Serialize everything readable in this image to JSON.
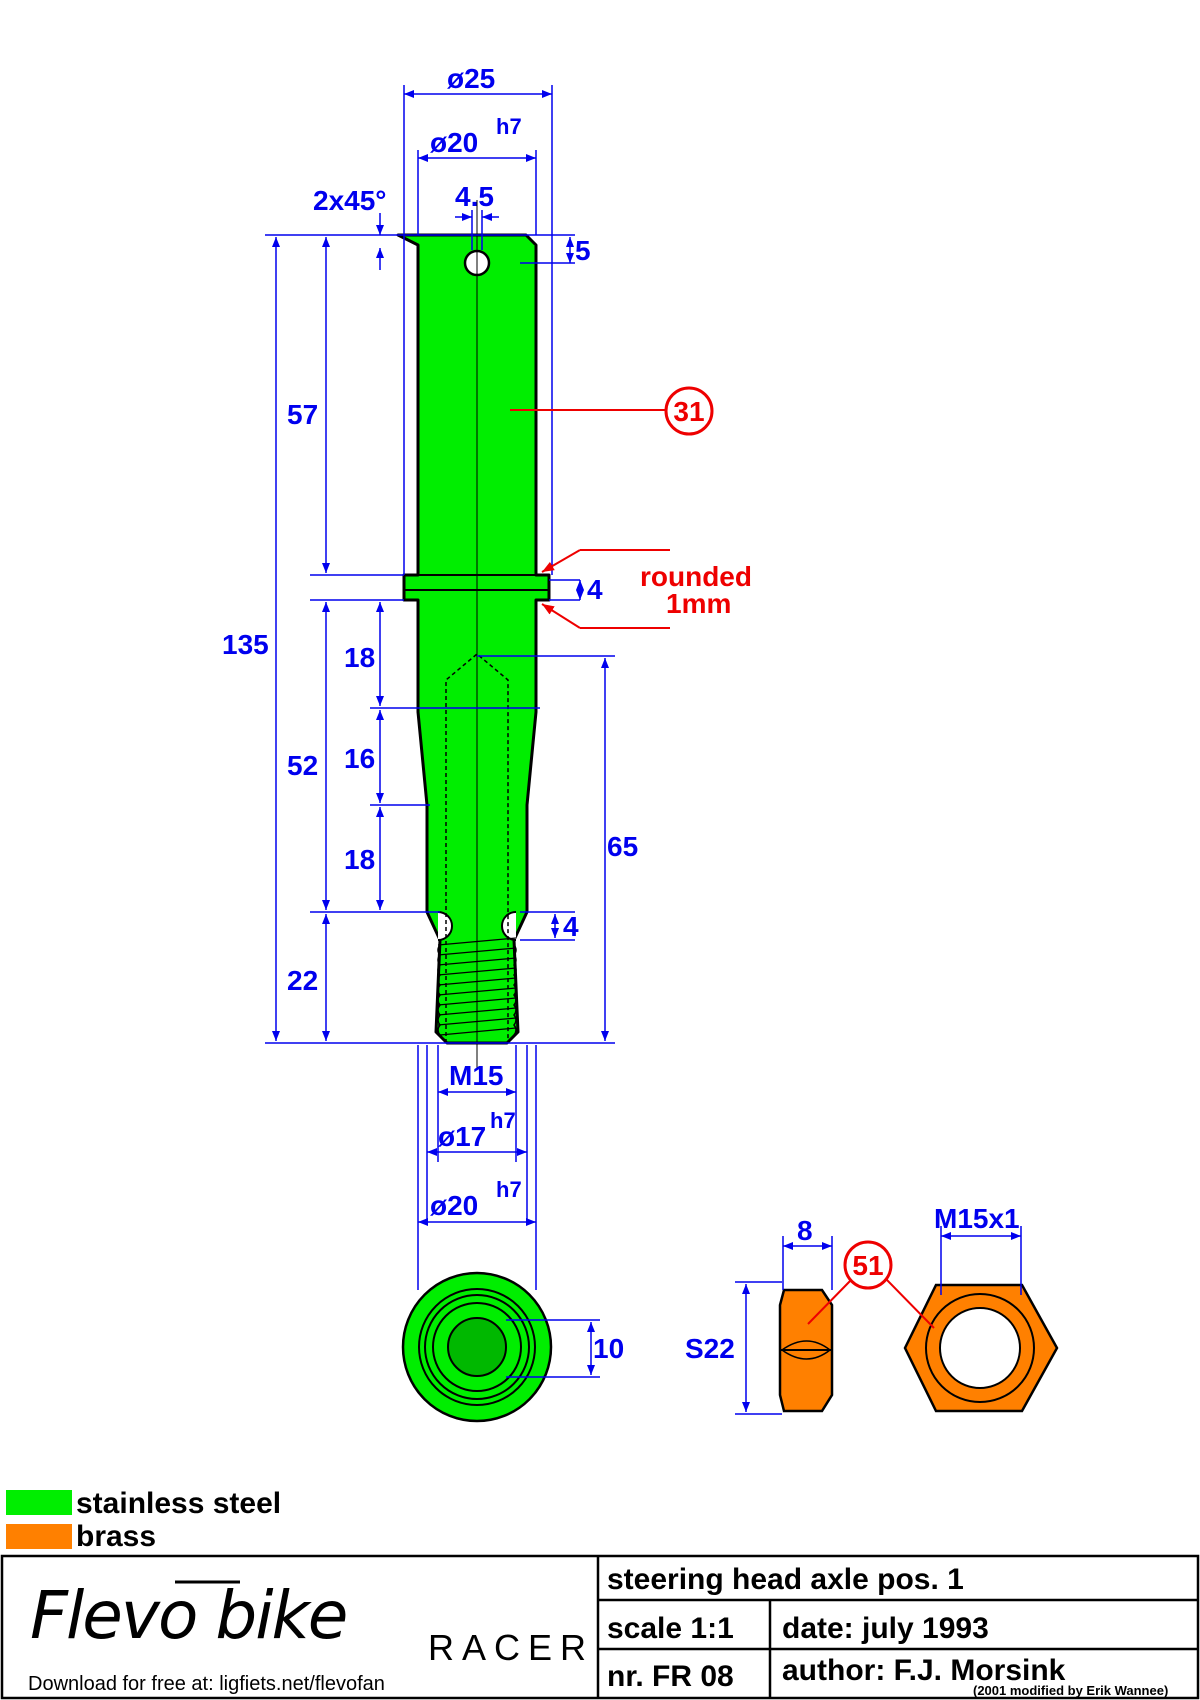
{
  "part": {
    "dims": {
      "dia_top": "ø25",
      "dia_shaft": "ø20",
      "tol_h7": "h7",
      "chamfer": "2x45°",
      "hole": "4.5",
      "hole_pos": "5",
      "len_57": "57",
      "total_135": "135",
      "collar": "4",
      "len_52": "52",
      "len_18a": "18",
      "len_16": "16",
      "len_18b": "18",
      "len_65": "65",
      "groove": "4",
      "len_22": "22",
      "thread": "M15",
      "dia_17": "ø17",
      "dia_20b": "ø20",
      "end_10": "10"
    },
    "balloon": "31",
    "note_line1": "rounded",
    "note_line2": "1mm"
  },
  "nut": {
    "thickness": "8",
    "wrench": "S22",
    "thread": "M15x1",
    "balloon": "51"
  },
  "legend": [
    {
      "label": "stainless steel",
      "color": "#00ee00"
    },
    {
      "label": "brass",
      "color": "#ff8000"
    }
  ],
  "title_block": {
    "brand": "Flevo bike",
    "model": "RACER",
    "download": "Download for free at: ligfiets.net/flevofan",
    "title": "steering head axle   pos. 1",
    "scale": "scale 1:1",
    "date": "date: july 1993",
    "number": "nr. FR 08",
    "author": "author: F.J. Morsink",
    "modified": "(2001 modified by Erik Wannee)"
  },
  "colors": {
    "steel": "#00ee00",
    "brass": "#ff8000",
    "dimension": "#0000ee",
    "annotation": "#ee0000"
  }
}
